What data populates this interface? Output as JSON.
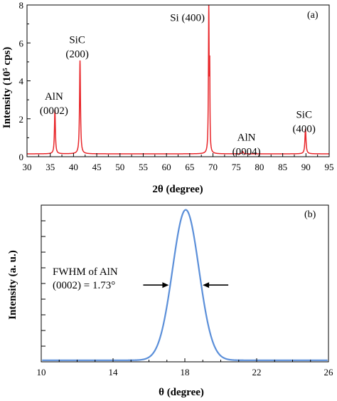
{
  "chart_data": [
    {
      "type": "line",
      "panel_label": "(a)",
      "xlabel": "2θ (degree)",
      "ylabel": "Intensity (10⁵ cps)",
      "xlim": [
        30,
        95
      ],
      "ylim": [
        0,
        8
      ],
      "xticks": [
        30,
        35,
        40,
        45,
        50,
        55,
        60,
        65,
        70,
        75,
        80,
        85,
        90,
        95
      ],
      "yticks": [
        0,
        2,
        4,
        6,
        8
      ],
      "line_color": "#e8262a",
      "baseline": 0.15,
      "peaks": [
        {
          "x": 36.0,
          "y": 2.3,
          "width": 0.12
        },
        {
          "x": 41.4,
          "y": 4.9,
          "width": 0.12
        },
        {
          "x": 69.1,
          "y": 7.5,
          "width": 0.09
        },
        {
          "x": 69.3,
          "y": 3.9,
          "width": 0.06
        },
        {
          "x": 76.4,
          "y": 0.12,
          "width": 0.15
        },
        {
          "x": 89.9,
          "y": 1.3,
          "width": 0.14
        }
      ],
      "annotations": [
        {
          "lines": [
            "AlN",
            "(0002)"
          ],
          "x": 35.8,
          "y": 3.0
        },
        {
          "lines": [
            "SiC",
            "(200)"
          ],
          "x": 40.8,
          "y": 6.0
        },
        {
          "lines": [
            "Si (400)"
          ],
          "x": 64.5,
          "y": 7.15
        },
        {
          "lines": [
            "AlN",
            "(0004)"
          ],
          "x": 77.2,
          "y": 0.85
        },
        {
          "lines": [
            "SiC",
            "(400)"
          ],
          "x": 89.6,
          "y": 2.05
        }
      ],
      "legend": "none",
      "grid": false
    },
    {
      "type": "line",
      "panel_label": "(b)",
      "xlabel": "θ (degree)",
      "ylabel": "Intensity (a. u.)",
      "xlim": [
        10,
        26
      ],
      "ylim": [
        0,
        1
      ],
      "xticks": [
        10,
        14,
        18,
        22,
        26
      ],
      "y_tick_labels": "none",
      "line_color": "#5b8fd9",
      "peak": {
        "center": 18.05,
        "fwhm": 1.73,
        "height": 0.96,
        "baseline": 0.01
      },
      "annotation": {
        "lines": [
          "FWHM of AlN",
          "(0002) = 1.73°"
        ]
      },
      "legend": "none",
      "grid": false
    }
  ]
}
